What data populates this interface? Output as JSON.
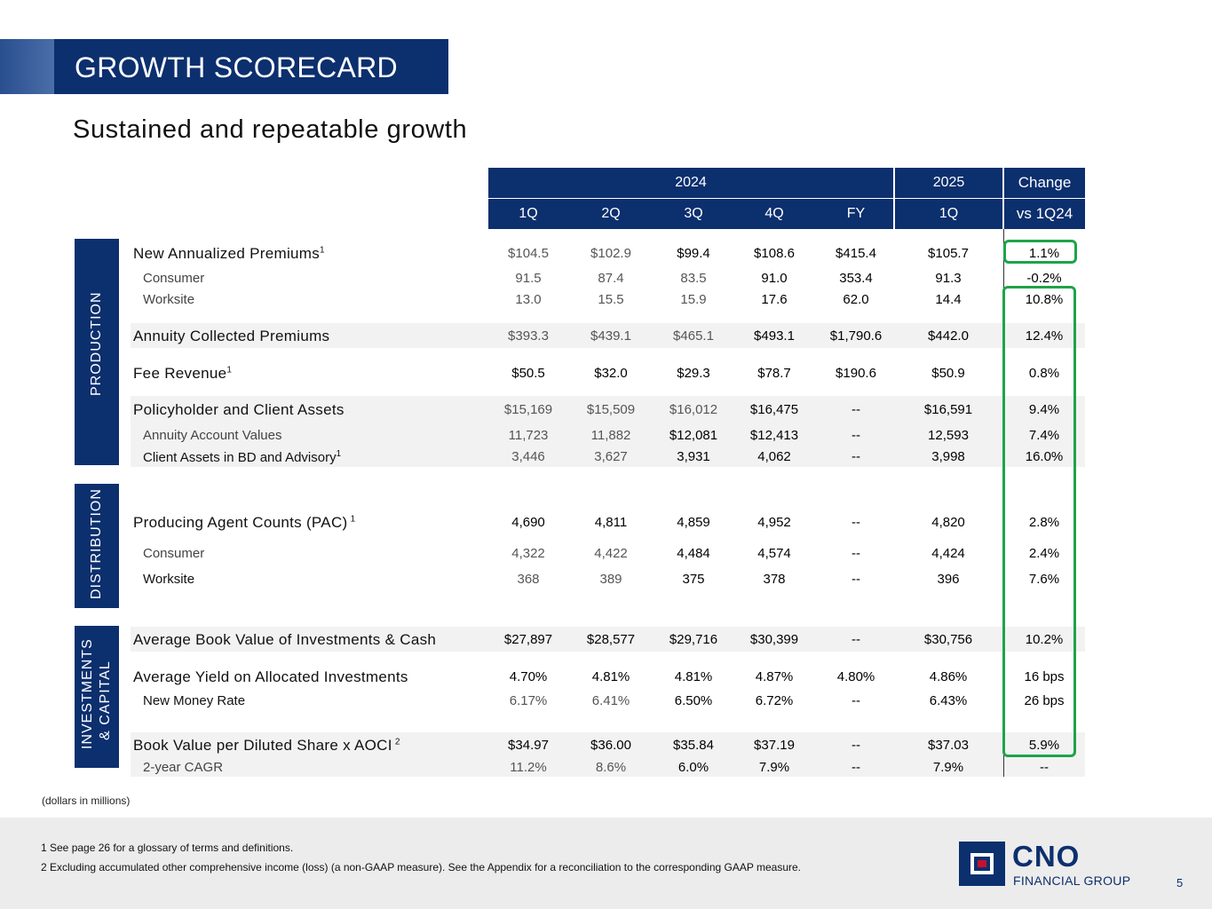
{
  "header": {
    "title": "GROWTH SCORECARD",
    "subtitle": "Sustained and repeatable growth"
  },
  "columns": {
    "year_2024": "2024",
    "year_2025": "2025",
    "change_top": "Change",
    "change_bottom": "vs 1Q24",
    "q1": "1Q",
    "q2": "2Q",
    "q3": "3Q",
    "q4": "4Q",
    "fy": "FY",
    "q1_2025": "1Q"
  },
  "sections": {
    "production": "PRODUCTION",
    "distribution": "DISTRIBUTION",
    "investments_l1": "INVESTMENTS",
    "investments_l2": "& CAPITAL"
  },
  "rows": [
    {
      "label": "New Annualized Premiums",
      "sup": "1",
      "style": "main",
      "values": [
        "$104.5",
        "$102.9",
        "$99.4",
        "$108.6",
        "$415.4",
        "$105.7",
        "1.1%"
      ]
    },
    {
      "label": "Consumer",
      "sup": "",
      "style": "sub",
      "values": [
        "91.5",
        "87.4",
        "83.5",
        "91.0",
        "353.4",
        "91.3",
        "-0.2%"
      ]
    },
    {
      "label": "Worksite",
      "sup": "",
      "style": "sub",
      "values": [
        "13.0",
        "15.5",
        "15.9",
        "17.6",
        "62.0",
        "14.4",
        "10.8%"
      ]
    },
    {
      "label": "Annuity Collected Premiums",
      "sup": "",
      "style": "main",
      "values": [
        "$393.3",
        "$439.1",
        "$465.1",
        "$493.1",
        "$1,790.6",
        "$442.0",
        "12.4%"
      ]
    },
    {
      "label": "Fee Revenue",
      "sup": "1",
      "style": "main",
      "values": [
        "$50.5",
        "$32.0",
        "$29.3",
        "$78.7",
        "$190.6",
        "$50.9",
        "0.8%"
      ]
    },
    {
      "label": "Policyholder and Client Assets",
      "sup": "",
      "style": "main",
      "values": [
        "$15,169",
        "$15,509",
        "$16,012",
        "$16,475",
        "--",
        "$16,591",
        "9.4%"
      ]
    },
    {
      "label": "Annuity Account Values",
      "sup": "",
      "style": "sub",
      "values": [
        "11,723",
        "11,882",
        "$12,081",
        "$12,413",
        "--",
        "12,593",
        "7.4%"
      ]
    },
    {
      "label": "Client Assets in BD and Advisory",
      "sup": "1",
      "style": "subdark",
      "values": [
        "3,446",
        "3,627",
        "3,931",
        "4,062",
        "--",
        "3,998",
        "16.0%"
      ]
    },
    {
      "label": "Producing Agent Counts (PAC)",
      "sup": "1",
      "style": "main",
      "values": [
        "4,690",
        "4,811",
        "4,859",
        "4,952",
        "--",
        "4,820",
        "2.8%"
      ]
    },
    {
      "label": "Consumer",
      "sup": "",
      "style": "sub",
      "values": [
        "4,322",
        "4,422",
        "4,484",
        "4,574",
        "--",
        "4,424",
        "2.4%"
      ]
    },
    {
      "label": "Worksite",
      "sup": "",
      "style": "subdark",
      "values": [
        "368",
        "389",
        "375",
        "378",
        "--",
        "396",
        "7.6%"
      ]
    },
    {
      "label": "Average Book Value of Investments & Cash",
      "sup": "",
      "style": "main",
      "values": [
        "$27,897",
        "$28,577",
        "$29,716",
        "$30,399",
        "--",
        "$30,756",
        "10.2%"
      ]
    },
    {
      "label": "Average Yield on Allocated Investments",
      "sup": "",
      "style": "main",
      "values": [
        "4.70%",
        "4.81%",
        "4.81%",
        "4.87%",
        "4.80%",
        "4.86%",
        "16 bps"
      ]
    },
    {
      "label": "New Money Rate",
      "sup": "",
      "style": "subdark",
      "values": [
        "6.17%",
        "6.41%",
        "6.50%",
        "6.72%",
        "--",
        "6.43%",
        "26 bps"
      ]
    },
    {
      "label": "Book Value per Diluted Share x AOCI",
      "sup": "2",
      "style": "main",
      "values": [
        "$34.97",
        "$36.00",
        "$35.84",
        "$37.19",
        "--",
        "$37.03",
        "5.9%"
      ]
    },
    {
      "label": "2-year CAGR",
      "sup": "",
      "style": "sub",
      "values": [
        "11.2%",
        "8.6%",
        "6.0%",
        "7.9%",
        "--",
        "7.9%",
        "--"
      ]
    }
  ],
  "notes": {
    "units": "(dollars in millions)",
    "fn1": "1  See page 26 for a glossary of terms and definitions.",
    "fn2": "2  Excluding accumulated other comprehensive income (loss) (a non-GAAP measure). See the Appendix for a reconciliation to the corresponding GAAP measure."
  },
  "logo": {
    "name": "CNO",
    "tagline": "FINANCIAL GROUP"
  },
  "page_number": "5",
  "colors": {
    "navy": "#0c2f6e",
    "highlight": "#1fa34a",
    "band": "#f2f2f2",
    "logo_red": "#c8102e"
  }
}
